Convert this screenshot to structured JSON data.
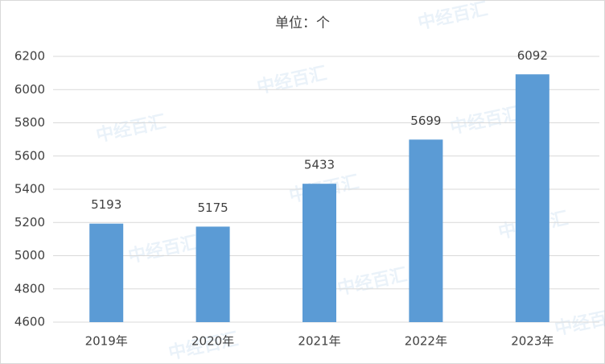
{
  "chart_data": {
    "type": "bar",
    "title": "单位：个",
    "categories": [
      "2019年",
      "2020年",
      "2021年",
      "2022年",
      "2023年"
    ],
    "values": [
      5193,
      5175,
      5433,
      5699,
      6092
    ],
    "color": "#5b9bd5",
    "ylim": [
      4600,
      6200
    ],
    "yticks": [
      4600,
      4800,
      5000,
      5200,
      5400,
      5600,
      5800,
      6000,
      6200
    ],
    "grid": true,
    "watermark": "中经百汇"
  }
}
